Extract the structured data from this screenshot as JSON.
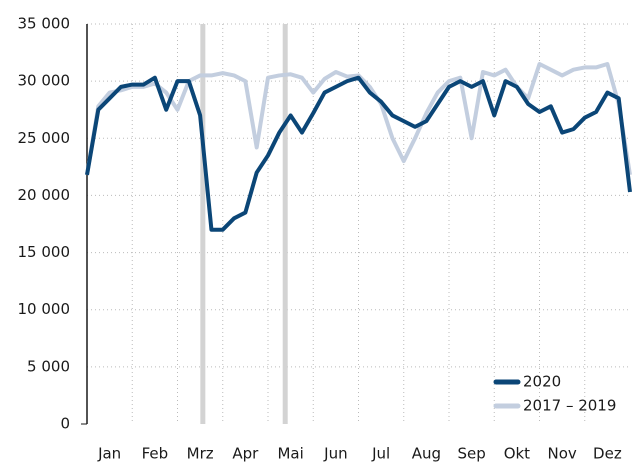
{
  "chart_data": {
    "type": "line",
    "x": [
      0,
      0.25,
      0.5,
      0.75,
      1,
      1.25,
      1.5,
      1.75,
      2,
      2.25,
      2.5,
      2.75,
      3,
      3.25,
      3.5,
      3.75,
      4,
      4.25,
      4.5,
      4.75,
      5,
      5.25,
      5.5,
      5.75,
      6,
      6.25,
      6.5,
      6.75,
      7,
      7.25,
      7.5,
      7.75,
      8,
      8.25,
      8.5,
      8.75,
      9,
      9.25,
      9.5,
      9.75,
      10,
      10.25,
      10.5,
      10.75,
      11,
      11.25,
      11.5,
      11.75,
      12
    ],
    "series": [
      {
        "name": "2017 – 2019",
        "color": "#c3cedf",
        "values": [
          21800,
          27800,
          29000,
          29200,
          29500,
          29500,
          29800,
          29000,
          27500,
          30000,
          30500,
          30500,
          30700,
          30500,
          30000,
          24200,
          30300,
          30500,
          30600,
          30300,
          29000,
          30200,
          30800,
          30400,
          30500,
          29500,
          28000,
          25000,
          23000,
          25000,
          27200,
          29000,
          30000,
          30300,
          25000,
          30800,
          30500,
          31000,
          29500,
          28500,
          31500,
          31000,
          30500,
          31000,
          31200,
          31200,
          31500,
          28000,
          21800
        ]
      },
      {
        "name": "2020",
        "color": "#0b4677",
        "values": [
          21800,
          27500,
          28500,
          29500,
          29700,
          29700,
          30300,
          27500,
          30000,
          30000,
          27000,
          17000,
          17000,
          18000,
          18500,
          22000,
          23500,
          25500,
          27000,
          25500,
          27200,
          29000,
          29500,
          30000,
          30300,
          29000,
          28200,
          27000,
          26500,
          26000,
          26500,
          28000,
          29500,
          30000,
          29500,
          30000,
          27000,
          30000,
          29500,
          28000,
          27300,
          27800,
          25500,
          25800,
          26800,
          27300,
          29000,
          28500,
          20300
        ]
      }
    ],
    "xlim": [
      0,
      12
    ],
    "xticks": [
      {
        "value": 0.5,
        "label": "Jan"
      },
      {
        "value": 1.5,
        "label": "Feb"
      },
      {
        "value": 2.5,
        "label": "Mrz"
      },
      {
        "value": 3.5,
        "label": "Apr"
      },
      {
        "value": 4.5,
        "label": "Mai"
      },
      {
        "value": 5.5,
        "label": "Jun"
      },
      {
        "value": 6.5,
        "label": "Jul"
      },
      {
        "value": 7.5,
        "label": "Aug"
      },
      {
        "value": 8.5,
        "label": "Sep"
      },
      {
        "value": 9.5,
        "label": "Okt"
      },
      {
        "value": 10.5,
        "label": "Nov"
      },
      {
        "value": 11.5,
        "label": "Dez"
      }
    ],
    "xgrid": [
      1,
      2,
      3,
      4,
      5,
      6,
      7,
      8,
      9,
      10,
      11
    ],
    "ylim": [
      0,
      35000
    ],
    "yticks": [
      0,
      {
        "value": 5000,
        "label": "5 000"
      },
      {
        "value": 10000,
        "label": "10 000"
      },
      {
        "value": 15000,
        "label": "15 000"
      },
      {
        "value": 20000,
        "label": "20 000"
      },
      {
        "value": 25000,
        "label": "25 000"
      },
      {
        "value": 30000,
        "label": "30 000"
      },
      {
        "value": 35000,
        "label": "35 000"
      }
    ],
    "highlight_x": [
      2.56,
      4.38
    ],
    "highlight_color": "#d3d3d3",
    "grid": true,
    "legend": "lower right"
  }
}
